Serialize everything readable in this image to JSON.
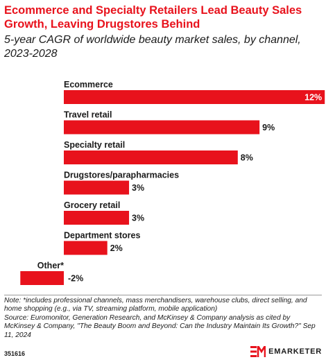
{
  "title": "Ecommerce and Specialty Retailers Lead Beauty Sales Growth, Leaving Drugstores Behind",
  "subtitle": "5-year CAGR of worldwide beauty market sales, by channel, 2023-2028",
  "chart_data": {
    "type": "bar",
    "orientation": "horizontal",
    "categories": [
      "Ecommerce",
      "Travel retail",
      "Specialty retail",
      "Drugstores/parapharmacies",
      "Grocery retail",
      "Department stores",
      "Other*"
    ],
    "values": [
      12,
      9,
      8,
      3,
      3,
      2,
      -2
    ],
    "value_labels": [
      "12%",
      "9%",
      "8%",
      "3%",
      "3%",
      "2%",
      "-2%"
    ],
    "bar_color": "#e8121c",
    "unit": "%"
  },
  "note": "Note: *includes professional channels, mass merchandisers, warehouse clubs, direct selling, and home shopping (e.g., via TV, streaming platform, mobile application)",
  "source": "Source: Euromonitor, Generation Research, and McKinsey & Company analysis as cited by McKinsey & Company, \"The Beauty Boom and Beyond: Can the Industry Maintain Its Growth?\" Sep 11, 2024",
  "footer": {
    "chart_id": "351616",
    "brand": "EMARKETER"
  },
  "colors": {
    "accent": "#e8121c",
    "text": "#1a1a1a"
  }
}
